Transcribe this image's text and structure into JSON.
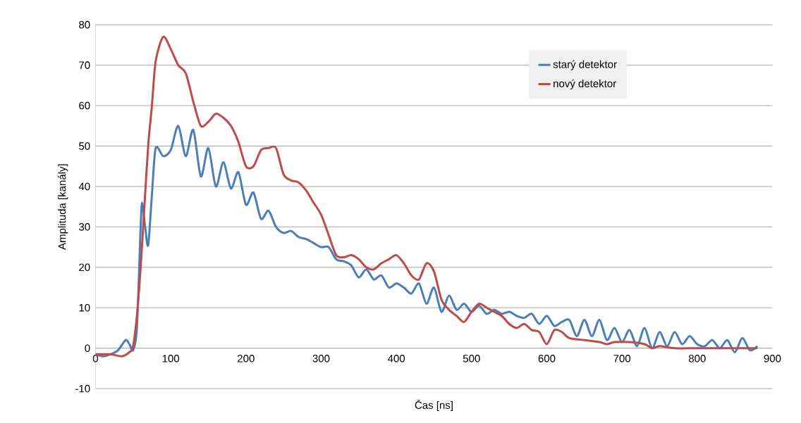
{
  "chart_data": {
    "type": "line",
    "xlabel": "Čas [ns]",
    "ylabel": "Amplituda [kanály]",
    "xlim": [
      0,
      900
    ],
    "ylim": [
      -10,
      80
    ],
    "xticks": [
      0,
      100,
      200,
      300,
      400,
      500,
      600,
      700,
      800,
      900
    ],
    "yticks": [
      -10,
      0,
      10,
      20,
      30,
      40,
      50,
      60,
      70,
      80
    ],
    "grid": "y",
    "legend": "top right",
    "series": [
      {
        "name": "starý detektor",
        "color": "#4a7ebb",
        "x": [
          0,
          10,
          20,
          30,
          40,
          45,
          50,
          55,
          60,
          62,
          66,
          70,
          75,
          80,
          90,
          100,
          110,
          120,
          130,
          140,
          150,
          160,
          170,
          180,
          190,
          200,
          210,
          220,
          230,
          240,
          250,
          260,
          270,
          280,
          290,
          300,
          310,
          320,
          330,
          340,
          350,
          360,
          370,
          380,
          390,
          400,
          410,
          420,
          430,
          440,
          450,
          460,
          470,
          480,
          490,
          500,
          510,
          520,
          530,
          540,
          550,
          560,
          570,
          580,
          590,
          600,
          610,
          620,
          630,
          640,
          650,
          660,
          670,
          680,
          690,
          700,
          710,
          720,
          730,
          740,
          750,
          760,
          770,
          780,
          790,
          800,
          810,
          820,
          830,
          840,
          850,
          860,
          870,
          880
        ],
        "values": [
          -1.5,
          -2,
          -1.5,
          -0.5,
          2,
          1,
          -0.5,
          5,
          30,
          36,
          30,
          25.5,
          38,
          49.5,
          47.5,
          49,
          55,
          47.5,
          54,
          42.5,
          49.5,
          40,
          46,
          39.5,
          43.5,
          35.5,
          38.5,
          32,
          34,
          30,
          28.5,
          29,
          27.5,
          27,
          26,
          25,
          25,
          22,
          21.5,
          20.5,
          17.5,
          19.5,
          17,
          18,
          15,
          16,
          15,
          13.5,
          16,
          11,
          15,
          9,
          13,
          9.5,
          11,
          9,
          10.5,
          8.5,
          9.5,
          8.5,
          9,
          8,
          7.5,
          8.5,
          6,
          8,
          5.5,
          6.5,
          7,
          3,
          7,
          3,
          7,
          2,
          5,
          1.5,
          4.5,
          0.5,
          5,
          0,
          4,
          0.5,
          4,
          1,
          3,
          1,
          0.5,
          2,
          0,
          2,
          -1,
          2.5,
          -0.5,
          0.5
        ]
      },
      {
        "name": "nový detektor",
        "color": "#be4b48",
        "x": [
          0,
          20,
          35,
          45,
          50,
          55,
          60,
          65,
          70,
          75,
          80,
          90,
          100,
          110,
          120,
          130,
          140,
          150,
          160,
          170,
          180,
          190,
          200,
          210,
          220,
          230,
          240,
          250,
          260,
          270,
          280,
          290,
          300,
          310,
          320,
          330,
          340,
          350,
          360,
          370,
          380,
          390,
          400,
          410,
          420,
          430,
          440,
          450,
          460,
          470,
          480,
          490,
          500,
          510,
          520,
          530,
          540,
          550,
          560,
          570,
          580,
          590,
          600,
          610,
          620,
          630,
          650,
          670,
          680,
          690,
          710,
          730,
          740,
          750,
          770,
          800,
          820,
          850,
          880
        ],
        "values": [
          -1.5,
          -1.5,
          -2,
          -1,
          0.5,
          8,
          20,
          35,
          50,
          60,
          71,
          77,
          74,
          70,
          68,
          61,
          55,
          56,
          58,
          57,
          55,
          51,
          45,
          45,
          49,
          49.5,
          49.5,
          43,
          41.5,
          41,
          39,
          36,
          33,
          28,
          23,
          22.5,
          23,
          22,
          20,
          19.5,
          21,
          22,
          23,
          21,
          18,
          17,
          21,
          19,
          12,
          9.5,
          8,
          6.5,
          9,
          11,
          10,
          9,
          8,
          6,
          5,
          6,
          4.5,
          4,
          1,
          4.5,
          4,
          2.5,
          2,
          1.5,
          1,
          1.5,
          1.5,
          1,
          0,
          0.5,
          0,
          0,
          0,
          0,
          0
        ]
      }
    ]
  }
}
